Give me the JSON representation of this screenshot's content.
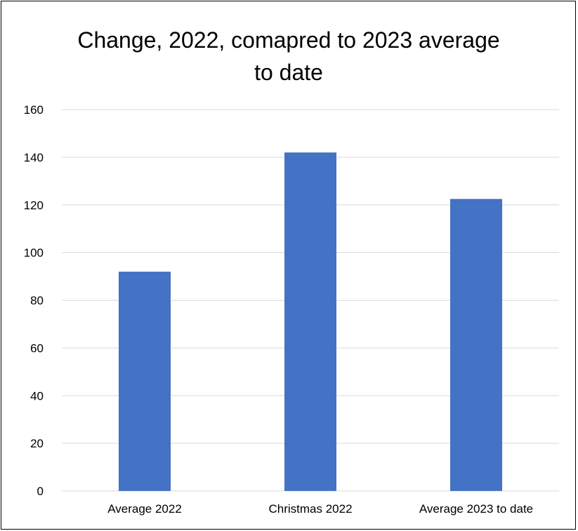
{
  "chart_data": {
    "type": "bar",
    "title_lines": [
      "Change, 2022, comapred to 2023 average",
      "to date"
    ],
    "categories": [
      "Average 2022",
      "Christmas 2022",
      "Average 2023 to date"
    ],
    "values": [
      92,
      142,
      122.5
    ],
    "y_ticks": [
      "0",
      "20",
      "40",
      "60",
      "80",
      "100",
      "120",
      "140",
      "160"
    ],
    "ylim": [
      0,
      160
    ],
    "grid": true,
    "legend": "none",
    "bar_color": "#4472C4",
    "grid_color": "#D9D9D9"
  }
}
